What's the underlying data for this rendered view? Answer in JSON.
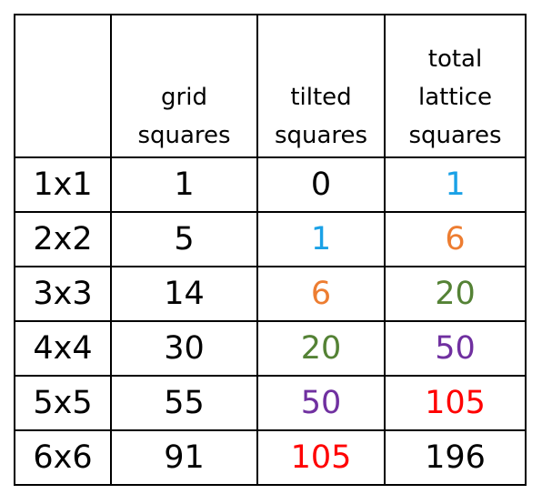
{
  "table": {
    "columns": [
      "grid squares",
      "tilted squares",
      "total lattice squares"
    ],
    "rows": [
      {
        "label": "1x1",
        "cells": [
          1,
          0,
          1
        ],
        "colors": [
          "#000000",
          "#000000",
          "#1aa1e6"
        ]
      },
      {
        "label": "2x2",
        "cells": [
          5,
          1,
          6
        ],
        "colors": [
          "#000000",
          "#1aa1e6",
          "#ed7d31"
        ]
      },
      {
        "label": "3x3",
        "cells": [
          14,
          6,
          20
        ],
        "colors": [
          "#000000",
          "#ed7d31",
          "#548235"
        ]
      },
      {
        "label": "4x4",
        "cells": [
          30,
          20,
          50
        ],
        "colors": [
          "#000000",
          "#548235",
          "#7030a0"
        ]
      },
      {
        "label": "5x5",
        "cells": [
          55,
          50,
          105
        ],
        "colors": [
          "#000000",
          "#7030a0",
          "#ff0000"
        ]
      },
      {
        "label": "6x6",
        "cells": [
          91,
          105,
          196
        ],
        "colors": [
          "#000000",
          "#ff0000",
          "#000000"
        ]
      }
    ]
  }
}
